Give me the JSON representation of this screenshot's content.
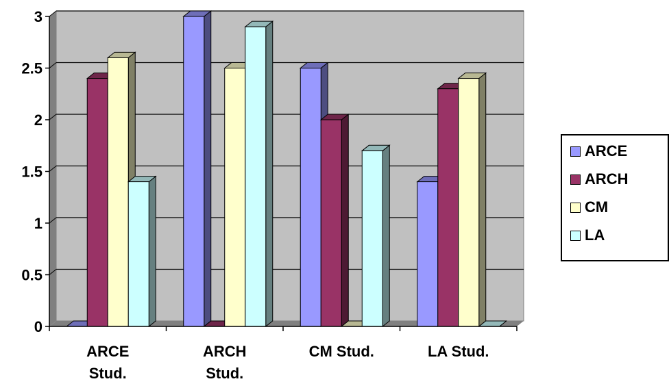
{
  "chart_data": {
    "type": "bar",
    "categories": [
      [
        "ARCE",
        "Stud."
      ],
      [
        "ARCH",
        "Stud."
      ],
      [
        "CM Stud."
      ],
      [
        "LA Stud."
      ]
    ],
    "series": [
      {
        "name": "ARCE",
        "values": [
          0,
          3.0,
          2.5,
          1.4
        ],
        "color": "#9999ff"
      },
      {
        "name": "ARCH",
        "values": [
          2.4,
          0,
          2.0,
          2.3
        ],
        "color": "#993366"
      },
      {
        "name": "CM",
        "values": [
          2.6,
          2.5,
          0,
          2.4
        ],
        "color": "#ffffcc"
      },
      {
        "name": "LA",
        "values": [
          1.4,
          2.9,
          1.7,
          0
        ],
        "color": "#ccffff"
      }
    ],
    "y_ticks": [
      "0",
      "0.5",
      "1",
      "1.5",
      "2",
      "2.5",
      "3"
    ],
    "ylim": [
      0,
      3
    ],
    "grid": true,
    "legend_position": "right",
    "plot_background": "#c0c0c0"
  }
}
